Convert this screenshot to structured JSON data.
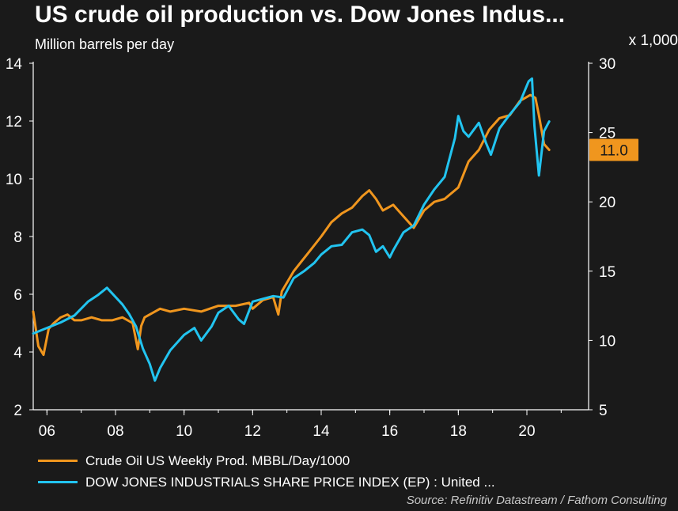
{
  "header": {
    "title": "US crude oil production vs. Dow Jones Indus...",
    "left_unit": "Million barrels per day",
    "right_unit": "x 1,000"
  },
  "source": "Source: Refinitiv Datastream / Fathom Consulting",
  "chart_data": {
    "type": "line",
    "title": "US crude oil production vs. Dow Jones Indus...",
    "xlabel": "",
    "ylabel": "Million barrels per day",
    "y2label": "x 1,000",
    "xlim": [
      2005.6,
      2021.8
    ],
    "ylim": [
      2,
      14
    ],
    "y2lim": [
      5,
      30
    ],
    "x_ticks": [
      2006,
      2008,
      2010,
      2012,
      2014,
      2016,
      2018,
      2020
    ],
    "x_tick_labels": [
      "06",
      "08",
      "10",
      "12",
      "14",
      "16",
      "18",
      "20"
    ],
    "y_ticks": [
      2,
      4,
      6,
      8,
      10,
      12,
      14
    ],
    "y2_ticks": [
      5,
      10,
      15,
      20,
      25,
      30
    ],
    "last_value_label": "11.0",
    "series": [
      {
        "name": "Crude Oil US Weekly Prod. MBBL/Day/1000",
        "axis": "left",
        "color": "#f0961e",
        "x": [
          2005.6,
          2005.75,
          2005.9,
          2006.05,
          2006.2,
          2006.4,
          2006.6,
          2006.8,
          2007.0,
          2007.3,
          2007.6,
          2007.9,
          2008.2,
          2008.5,
          2008.65,
          2008.75,
          2008.85,
          2009.0,
          2009.3,
          2009.6,
          2010.0,
          2010.5,
          2011.0,
          2011.5,
          2011.9,
          2012.0,
          2012.3,
          2012.6,
          2012.75,
          2012.85,
          2013.2,
          2013.6,
          2014.0,
          2014.3,
          2014.6,
          2014.9,
          2015.2,
          2015.4,
          2015.6,
          2015.8,
          2016.1,
          2016.4,
          2016.7,
          2017.0,
          2017.3,
          2017.6,
          2018.0,
          2018.3,
          2018.6,
          2018.9,
          2019.2,
          2019.5,
          2019.8,
          2020.1,
          2020.25,
          2020.35,
          2020.5,
          2020.65
        ],
        "values": [
          5.4,
          4.2,
          3.9,
          4.8,
          5.0,
          5.2,
          5.3,
          5.1,
          5.1,
          5.2,
          5.1,
          5.1,
          5.2,
          5.0,
          4.1,
          4.9,
          5.2,
          5.3,
          5.5,
          5.4,
          5.5,
          5.4,
          5.6,
          5.6,
          5.7,
          5.5,
          5.8,
          5.9,
          5.3,
          6.1,
          6.8,
          7.4,
          8.0,
          8.5,
          8.8,
          9.0,
          9.4,
          9.6,
          9.3,
          8.9,
          9.1,
          8.7,
          8.3,
          8.9,
          9.2,
          9.3,
          9.7,
          10.6,
          11.0,
          11.7,
          12.1,
          12.2,
          12.7,
          12.9,
          12.8,
          12.2,
          11.2,
          11.0
        ]
      },
      {
        "name": "DOW JONES INDUSTRIALS SHARE PRICE INDEX (EP) : United ...",
        "axis": "right",
        "color": "#22c4f0",
        "x": [
          2005.6,
          2006.0,
          2006.4,
          2006.8,
          2007.2,
          2007.5,
          2007.75,
          2007.9,
          2008.2,
          2008.4,
          2008.6,
          2008.8,
          2009.0,
          2009.15,
          2009.3,
          2009.6,
          2010.0,
          2010.3,
          2010.5,
          2010.8,
          2011.0,
          2011.3,
          2011.6,
          2011.75,
          2012.0,
          2012.3,
          2012.6,
          2012.9,
          2013.2,
          2013.5,
          2013.8,
          2014.0,
          2014.3,
          2014.6,
          2014.9,
          2015.2,
          2015.4,
          2015.6,
          2015.8,
          2016.0,
          2016.1,
          2016.4,
          2016.7,
          2017.0,
          2017.3,
          2017.6,
          2017.9,
          2018.0,
          2018.15,
          2018.3,
          2018.6,
          2018.8,
          2018.95,
          2019.2,
          2019.5,
          2019.8,
          2020.05,
          2020.15,
          2020.22,
          2020.35,
          2020.5,
          2020.65
        ],
        "values": [
          10.5,
          10.9,
          11.3,
          11.8,
          12.8,
          13.3,
          13.8,
          13.4,
          12.6,
          11.9,
          11.0,
          9.4,
          8.3,
          7.1,
          8.0,
          9.3,
          10.4,
          10.9,
          10.0,
          11.0,
          12.0,
          12.5,
          11.5,
          11.2,
          12.8,
          13.0,
          13.2,
          13.1,
          14.5,
          15.0,
          15.6,
          16.2,
          16.8,
          16.9,
          17.8,
          18.0,
          17.6,
          16.4,
          16.8,
          16.0,
          16.5,
          17.8,
          18.3,
          19.8,
          20.9,
          21.8,
          24.6,
          26.2,
          25.1,
          24.7,
          25.7,
          24.3,
          23.4,
          25.3,
          26.3,
          27.2,
          28.7,
          28.9,
          25.5,
          21.9,
          25.1,
          25.8
        ]
      }
    ]
  }
}
